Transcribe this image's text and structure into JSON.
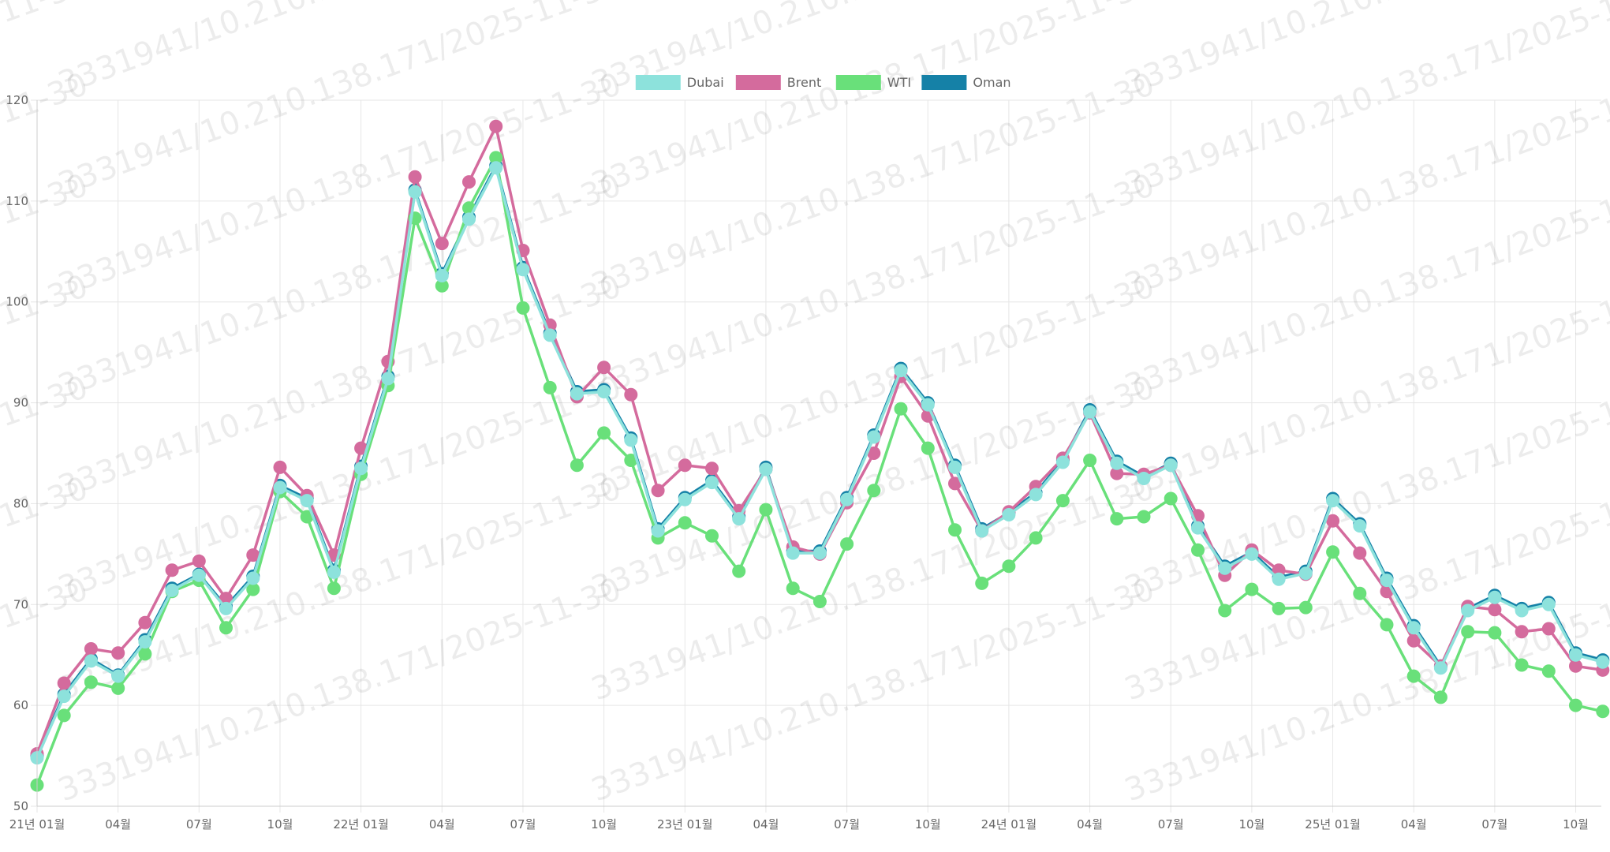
{
  "chart_data": {
    "type": "line",
    "title": "",
    "xlabel": "",
    "ylabel": "",
    "ylim": [
      50,
      120
    ],
    "y_ticks": [
      "50",
      "60",
      "70",
      "80",
      "90",
      "100",
      "110",
      "120"
    ],
    "grid": true,
    "legend_position": "top",
    "x_tick_labels": [
      {
        "index": 0,
        "label": "21년 01월"
      },
      {
        "index": 3,
        "label": "04월"
      },
      {
        "index": 6,
        "label": "07월"
      },
      {
        "index": 9,
        "label": "10월"
      },
      {
        "index": 12,
        "label": "22년 01월"
      },
      {
        "index": 15,
        "label": "04월"
      },
      {
        "index": 18,
        "label": "07월"
      },
      {
        "index": 21,
        "label": "10월"
      },
      {
        "index": 24,
        "label": "23년 01월"
      },
      {
        "index": 27,
        "label": "04월"
      },
      {
        "index": 30,
        "label": "07월"
      },
      {
        "index": 33,
        "label": "10월"
      },
      {
        "index": 36,
        "label": "24년 01월"
      },
      {
        "index": 39,
        "label": "04월"
      },
      {
        "index": 42,
        "label": "07월"
      },
      {
        "index": 45,
        "label": "10월"
      },
      {
        "index": 48,
        "label": "25년 01월"
      },
      {
        "index": 51,
        "label": "04월"
      },
      {
        "index": 54,
        "label": "07월"
      },
      {
        "index": 57,
        "label": "10월"
      }
    ],
    "x": [
      "2021-01",
      "2021-02",
      "2021-03",
      "2021-04",
      "2021-05",
      "2021-06",
      "2021-07",
      "2021-08",
      "2021-09",
      "2021-10",
      "2021-11",
      "2021-12",
      "2022-01",
      "2022-02",
      "2022-03",
      "2022-04",
      "2022-05",
      "2022-06",
      "2022-07",
      "2022-08",
      "2022-09",
      "2022-10",
      "2022-11",
      "2022-12",
      "2023-01",
      "2023-02",
      "2023-03",
      "2023-04",
      "2023-05",
      "2023-06",
      "2023-07",
      "2023-08",
      "2023-09",
      "2023-10",
      "2023-11",
      "2023-12",
      "2024-01",
      "2024-02",
      "2024-03",
      "2024-04",
      "2024-05",
      "2024-06",
      "2024-07",
      "2024-08",
      "2024-09",
      "2024-10",
      "2024-11",
      "2024-12",
      "2025-01",
      "2025-02",
      "2025-03",
      "2025-04",
      "2025-05",
      "2025-06",
      "2025-07",
      "2025-08",
      "2025-09",
      "2025-10",
      "2025-11"
    ],
    "series": [
      {
        "name": "Dubai",
        "color": "#8de2dc",
        "values": [
          54.8,
          60.9,
          64.4,
          62.9,
          66.3,
          71.4,
          72.9,
          69.6,
          72.6,
          81.6,
          80.3,
          73.2,
          83.5,
          92.4,
          110.9,
          102.6,
          108.2,
          113.3,
          103.2,
          96.7,
          90.9,
          91.1,
          86.3,
          77.3,
          80.4,
          82.1,
          78.5,
          83.4,
          75.1,
          75.1,
          80.4,
          86.6,
          93.2,
          89.8,
          83.6,
          77.3,
          78.9,
          80.9,
          84.1,
          89.1,
          84.0,
          82.5,
          83.8,
          77.6,
          73.6,
          75.0,
          72.5,
          73.1,
          80.3,
          77.8,
          72.4,
          67.7,
          63.7,
          69.4,
          70.7,
          69.4,
          70.0,
          65.0,
          64.3
        ]
      },
      {
        "name": "Brent",
        "color": "#d46b9d",
        "values": [
          55.2,
          62.2,
          65.6,
          65.2,
          68.2,
          73.4,
          74.3,
          70.6,
          74.9,
          83.6,
          80.8,
          74.9,
          85.5,
          94.1,
          112.4,
          105.8,
          111.9,
          117.4,
          105.1,
          97.7,
          90.6,
          93.5,
          90.8,
          81.3,
          83.8,
          83.5,
          79.3,
          83.4,
          75.7,
          75.0,
          80.1,
          85.0,
          92.6,
          88.7,
          82.0,
          77.3,
          79.2,
          81.7,
          84.5,
          89.0,
          83.0,
          82.9,
          83.8,
          78.8,
          72.9,
          75.4,
          73.4,
          73.0,
          78.3,
          75.1,
          71.3,
          66.4,
          63.9,
          69.8,
          69.5,
          67.3,
          67.6,
          63.9,
          63.5
        ]
      },
      {
        "name": "WTI",
        "color": "#69e07a",
        "values": [
          52.1,
          59.0,
          62.3,
          61.7,
          65.1,
          71.3,
          72.4,
          67.7,
          71.5,
          81.2,
          78.7,
          71.6,
          82.9,
          91.7,
          108.3,
          101.6,
          109.3,
          114.3,
          99.4,
          91.5,
          83.8,
          87.0,
          84.3,
          76.6,
          78.1,
          76.8,
          73.3,
          79.4,
          71.6,
          70.3,
          76.0,
          81.3,
          89.4,
          85.5,
          77.4,
          72.1,
          73.8,
          76.6,
          80.3,
          84.3,
          78.5,
          78.7,
          80.5,
          75.4,
          69.4,
          71.5,
          69.6,
          69.7,
          75.2,
          71.1,
          68.0,
          62.9,
          60.8,
          67.3,
          67.2,
          64.0,
          63.4,
          60.0,
          59.4
        ]
      },
      {
        "name": "Oman",
        "color": "#1581a7",
        "values": [
          55.0,
          61.1,
          64.6,
          63.0,
          66.5,
          71.6,
          73.0,
          69.8,
          72.8,
          81.8,
          80.5,
          73.4,
          83.7,
          92.6,
          111.1,
          102.8,
          108.4,
          113.5,
          103.4,
          96.9,
          91.1,
          91.3,
          86.5,
          77.5,
          80.6,
          82.3,
          78.7,
          83.6,
          75.3,
          75.3,
          80.6,
          86.8,
          93.4,
          90.0,
          83.8,
          77.5,
          79.1,
          81.1,
          84.3,
          89.3,
          84.2,
          82.7,
          84.0,
          77.8,
          73.8,
          75.2,
          72.7,
          73.3,
          80.5,
          78.0,
          72.6,
          67.9,
          63.9,
          69.6,
          70.9,
          69.6,
          70.2,
          65.2,
          64.5
        ]
      }
    ]
  },
  "watermark": "3331941/10.210.138.171/2025-11-30",
  "colors": {
    "grid": "#e6e6e6",
    "axis_text": "#666666"
  }
}
